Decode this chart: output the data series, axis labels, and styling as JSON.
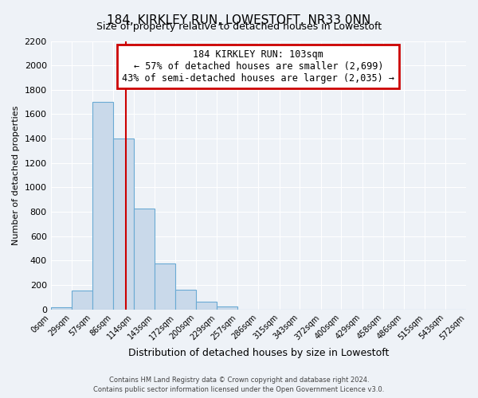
{
  "title": "184, KIRKLEY RUN, LOWESTOFT, NR33 0NN",
  "subtitle": "Size of property relative to detached houses in Lowestoft",
  "xlabel": "Distribution of detached houses by size in Lowestoft",
  "ylabel": "Number of detached properties",
  "bar_edges": [
    0,
    29,
    57,
    86,
    114,
    143,
    172,
    200,
    229,
    257,
    286,
    315,
    343,
    372,
    400,
    429,
    458,
    486,
    515,
    543,
    572
  ],
  "bar_heights": [
    20,
    155,
    1700,
    1400,
    830,
    380,
    165,
    65,
    28,
    0,
    0,
    0,
    0,
    0,
    0,
    0,
    0,
    0,
    0,
    0
  ],
  "bar_color": "#c9d9ea",
  "bar_edgecolor": "#6aaad4",
  "red_line_x": 103,
  "ylim": [
    0,
    2200
  ],
  "annotation_line1": "184 KIRKLEY RUN: 103sqm",
  "annotation_line2": "← 57% of detached houses are smaller (2,699)",
  "annotation_line3": "43% of semi-detached houses are larger (2,035) →",
  "annotation_bbox_edgecolor": "#cc0000",
  "annotation_bbox_facecolor": "#ffffff",
  "footer_line1": "Contains HM Land Registry data © Crown copyright and database right 2024.",
  "footer_line2": "Contains public sector information licensed under the Open Government Licence v3.0.",
  "bg_color": "#eef2f7",
  "grid_color": "#ffffff",
  "yticks": [
    0,
    200,
    400,
    600,
    800,
    1000,
    1200,
    1400,
    1600,
    1800,
    2000,
    2200
  ],
  "title_fontsize": 11,
  "subtitle_fontsize": 9,
  "annotation_fontsize": 8.5,
  "ylabel_fontsize": 8,
  "xlabel_fontsize": 9
}
